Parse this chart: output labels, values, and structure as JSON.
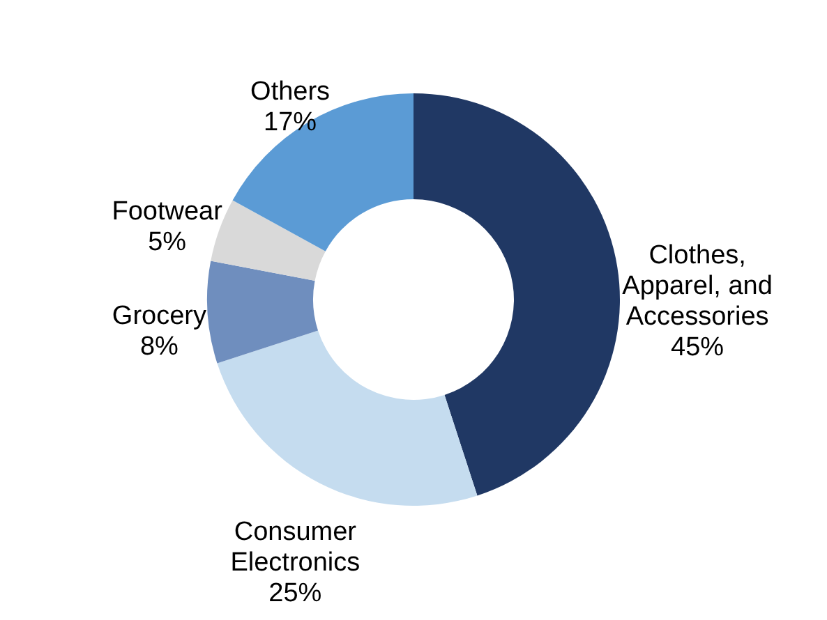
{
  "chart_data": {
    "type": "donut",
    "categories": [
      "Clothes, Apparel, and Accessories",
      "Consumer Electronics",
      "Grocery",
      "Footwear",
      "Others"
    ],
    "values": [
      45,
      25,
      8,
      5,
      17
    ],
    "value_labels": [
      "45%",
      "25%",
      "8%",
      "5%",
      "17%"
    ],
    "colors": [
      "#203864",
      "#c5dcef",
      "#6f8ebe",
      "#d9d9d9",
      "#5b9bd5"
    ]
  }
}
